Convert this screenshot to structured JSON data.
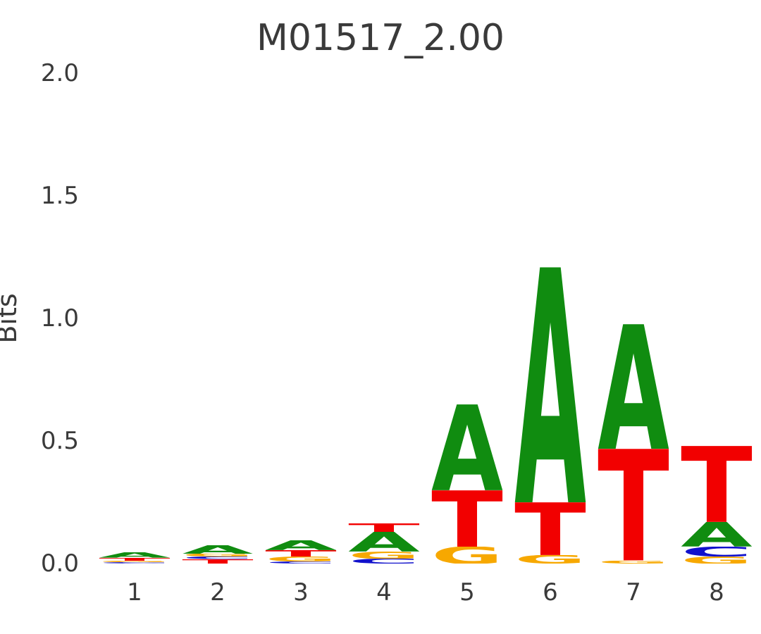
{
  "chart_data": {
    "type": "sequence_logo",
    "title": "M01517_2.00",
    "ylabel": "Bits",
    "xlabel": "",
    "ylim": [
      0,
      2.0
    ],
    "yticks": [
      0.0,
      0.5,
      1.0,
      1.5,
      2.0
    ],
    "positions": [
      1,
      2,
      3,
      4,
      5,
      6,
      7,
      8
    ],
    "legend": "none",
    "grid": false,
    "colors": {
      "A": "#108C10",
      "C": "#1111CC",
      "G": "#F7A800",
      "T": "#F20000"
    },
    "stacks": [
      [
        {
          "letter": "C",
          "bits": 0.005
        },
        {
          "letter": "G",
          "bits": 0.006
        },
        {
          "letter": "T",
          "bits": 0.013
        },
        {
          "letter": "A",
          "bits": 0.022
        }
      ],
      [
        {
          "letter": "T",
          "bits": 0.018
        },
        {
          "letter": "C",
          "bits": 0.01
        },
        {
          "letter": "G",
          "bits": 0.012
        },
        {
          "letter": "A",
          "bits": 0.035
        }
      ],
      [
        {
          "letter": "C",
          "bits": 0.008
        },
        {
          "letter": "G",
          "bits": 0.02
        },
        {
          "letter": "T",
          "bits": 0.026
        },
        {
          "letter": "A",
          "bits": 0.04
        }
      ],
      [
        {
          "letter": "C",
          "bits": 0.02
        },
        {
          "letter": "G",
          "bits": 0.03
        },
        {
          "letter": "A",
          "bits": 0.08
        },
        {
          "letter": "T",
          "bits": 0.035
        }
      ],
      [
        {
          "letter": "G",
          "bits": 0.07
        },
        {
          "letter": "T",
          "bits": 0.23
        },
        {
          "letter": "A",
          "bits": 0.35
        }
      ],
      [
        {
          "letter": "G",
          "bits": 0.035
        },
        {
          "letter": "T",
          "bits": 0.215
        },
        {
          "letter": "A",
          "bits": 0.96
        }
      ],
      [
        {
          "letter": "G",
          "bits": 0.012
        },
        {
          "letter": "T",
          "bits": 0.455
        },
        {
          "letter": "A",
          "bits": 0.51
        }
      ],
      [
        {
          "letter": "G",
          "bits": 0.03
        },
        {
          "letter": "C",
          "bits": 0.04
        },
        {
          "letter": "A",
          "bits": 0.1
        },
        {
          "letter": "T",
          "bits": 0.31
        }
      ]
    ]
  }
}
